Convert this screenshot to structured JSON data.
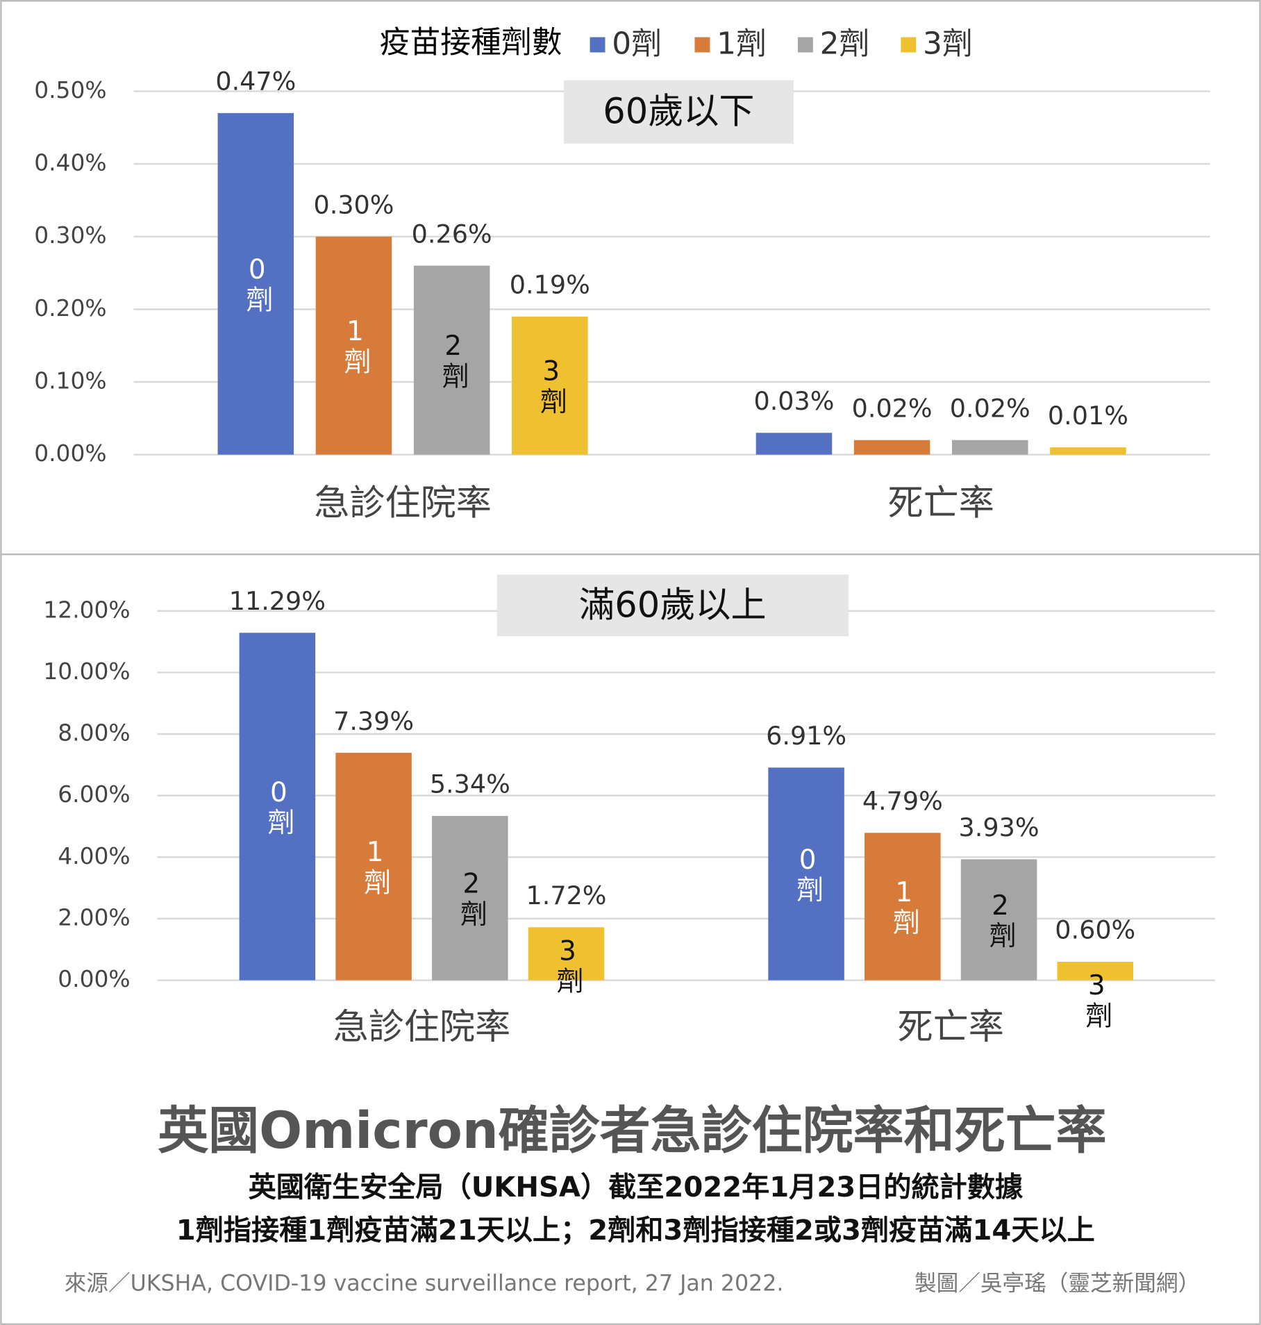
{
  "legend_title": "疫苗接種劑數",
  "chart_data": [
    {
      "type": "bar",
      "title": "60歲以下",
      "categories": [
        "急診住院率",
        "死亡率"
      ],
      "series": [
        {
          "name": "0劑",
          "color": "#5470c2",
          "values": [
            0.47,
            0.03
          ],
          "value_labels": [
            "0.47%",
            "0.03%"
          ]
        },
        {
          "name": "1劑",
          "color": "#d77b3a",
          "values": [
            0.3,
            0.02
          ],
          "value_labels": [
            "0.30%",
            "0.02%"
          ]
        },
        {
          "name": "2劑",
          "color": "#a5a5a5",
          "values": [
            0.26,
            0.02
          ],
          "value_labels": [
            "0.26%",
            "0.02%"
          ]
        },
        {
          "name": "3劑",
          "color": "#efc030",
          "values": [
            0.19,
            0.01
          ],
          "value_labels": [
            "0.19%",
            "0.01%"
          ]
        }
      ],
      "ylim": [
        0,
        0.5
      ],
      "yticks": [
        {
          "value": 0,
          "label": "0.00%"
        },
        {
          "value": 0.1,
          "label": "0.10%"
        },
        {
          "value": 0.2,
          "label": "0.20%"
        },
        {
          "value": 0.3,
          "label": "0.30%"
        },
        {
          "value": 0.4,
          "label": "0.40%"
        },
        {
          "value": 0.5,
          "label": "0.50%"
        }
      ],
      "grid": true
    },
    {
      "type": "bar",
      "title": "滿60歲以上",
      "categories": [
        "急診住院率",
        "死亡率"
      ],
      "series": [
        {
          "name": "0劑",
          "color": "#5470c2",
          "values": [
            11.29,
            6.91
          ],
          "value_labels": [
            "11.29%",
            "6.91%"
          ]
        },
        {
          "name": "1劑",
          "color": "#d77b3a",
          "values": [
            7.39,
            4.79
          ],
          "value_labels": [
            "7.39%",
            "4.79%"
          ]
        },
        {
          "name": "2劑",
          "color": "#a5a5a5",
          "values": [
            5.34,
            3.93
          ],
          "value_labels": [
            "5.34%",
            "3.93%"
          ]
        },
        {
          "name": "3劑",
          "color": "#efc030",
          "values": [
            1.72,
            0.6
          ],
          "value_labels": [
            "1.72%",
            "0.60%"
          ]
        }
      ],
      "ylim": [
        0,
        12
      ],
      "yticks": [
        {
          "value": 0,
          "label": "0.00%"
        },
        {
          "value": 2,
          "label": "2.00%"
        },
        {
          "value": 4,
          "label": "4.00%"
        },
        {
          "value": 6,
          "label": "6.00%"
        },
        {
          "value": 8,
          "label": "8.00%"
        },
        {
          "value": 10,
          "label": "10.00%"
        },
        {
          "value": 12,
          "label": "12.00%"
        }
      ],
      "grid": true
    }
  ],
  "title": "英國Omicron確診者急診住院率和死亡率",
  "subtitle": [
    "英國衛生安全局（UKHSA）截至2022年1月23日的統計數據",
    "1劑指接種1劑疫苗滿21天以上；2劑和3劑指接種2或3劑疫苗滿14天以上"
  ],
  "source": "來源／UKSHA, COVID-19 vaccine surveillance report, 27 Jan 2022.",
  "credit": "製圖／吳亭瑤（靈芝新聞網）"
}
